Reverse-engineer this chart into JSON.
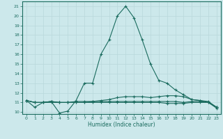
{
  "title": "",
  "xlabel": "Humidex (Indice chaleur)",
  "background_color": "#cce8eb",
  "line_color": "#1a6b5e",
  "grid_color": "#b8d8db",
  "xlim": [
    -0.5,
    23.5
  ],
  "ylim": [
    9.8,
    21.5
  ],
  "yticks": [
    10,
    11,
    12,
    13,
    14,
    15,
    16,
    17,
    18,
    19,
    20,
    21
  ],
  "xticks": [
    0,
    1,
    2,
    3,
    4,
    5,
    6,
    7,
    8,
    9,
    10,
    11,
    12,
    13,
    14,
    15,
    16,
    17,
    18,
    19,
    20,
    21,
    22,
    23
  ],
  "series": [
    [
      11.2,
      10.5,
      11.0,
      11.1,
      9.9,
      10.1,
      11.2,
      13.0,
      13.0,
      16.0,
      17.5,
      20.0,
      21.0,
      19.8,
      17.5,
      15.0,
      13.3,
      13.0,
      12.3,
      11.8,
      11.3,
      11.2,
      11.0,
      10.5
    ],
    [
      11.2,
      11.0,
      11.0,
      11.1,
      11.0,
      11.0,
      11.1,
      11.1,
      11.1,
      11.2,
      11.3,
      11.5,
      11.6,
      11.6,
      11.6,
      11.5,
      11.6,
      11.7,
      11.7,
      11.6,
      11.3,
      11.2,
      11.1,
      10.5
    ],
    [
      11.2,
      11.0,
      11.0,
      11.1,
      11.0,
      11.0,
      11.0,
      11.0,
      11.1,
      11.1,
      11.1,
      11.1,
      11.1,
      11.1,
      11.1,
      11.1,
      11.1,
      11.1,
      11.1,
      11.0,
      11.1,
      11.1,
      11.0,
      10.5
    ],
    [
      11.2,
      11.0,
      11.0,
      11.0,
      11.0,
      11.0,
      11.0,
      11.0,
      11.0,
      11.0,
      11.0,
      11.0,
      11.0,
      11.0,
      11.0,
      11.0,
      11.0,
      10.9,
      10.9,
      10.9,
      11.0,
      11.0,
      11.0,
      10.4
    ]
  ]
}
